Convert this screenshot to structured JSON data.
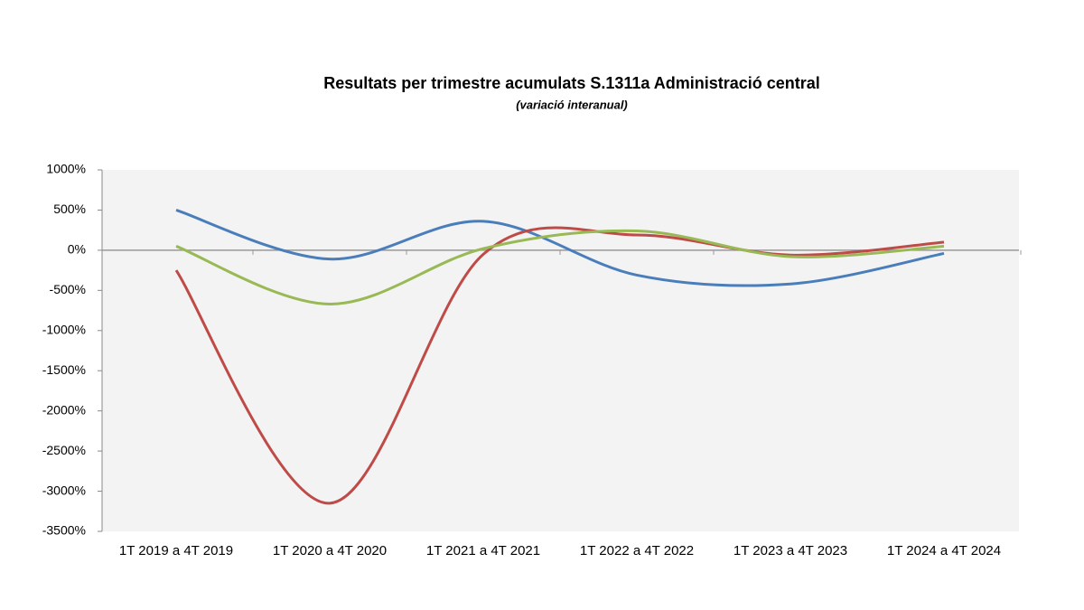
{
  "chart_data": {
    "type": "line",
    "smooth": true,
    "title": "Resultats per trimestre acumulats  S.1311a Administració central",
    "subtitle": "(variació interanual)",
    "categories": [
      "1T 2019 a 4T 2019",
      "1T 2020 a 4T 2020",
      "1T 2021 a 4T 2021",
      "1T 2022 a 4T 2022",
      "1T 2023 a 4T 2023",
      "1T 2024 a 4T 2024"
    ],
    "series": [
      {
        "color": "#4a7ebb",
        "values": [
          500,
          -110,
          360,
          -310,
          -420,
          -40
        ]
      },
      {
        "color": "#be4b48",
        "values": [
          -250,
          -3150,
          -50,
          190,
          -60,
          100
        ]
      },
      {
        "color": "#98b954",
        "values": [
          50,
          -670,
          20,
          240,
          -80,
          50
        ]
      }
    ],
    "ylim": [
      -3500,
      1000
    ],
    "yticks": [
      {
        "value": 1000,
        "label": "1000%"
      },
      {
        "value": 500,
        "label": "500%"
      },
      {
        "value": 0,
        "label": "0%"
      },
      {
        "value": -500,
        "label": "-500%"
      },
      {
        "value": -1000,
        "label": "-1000%"
      },
      {
        "value": -1500,
        "label": "-1500%"
      },
      {
        "value": -2000,
        "label": "-2000%"
      },
      {
        "value": -2500,
        "label": "-2500%"
      },
      {
        "value": -3000,
        "label": "-3000%"
      },
      {
        "value": -3500,
        "label": "-3500%"
      }
    ]
  }
}
